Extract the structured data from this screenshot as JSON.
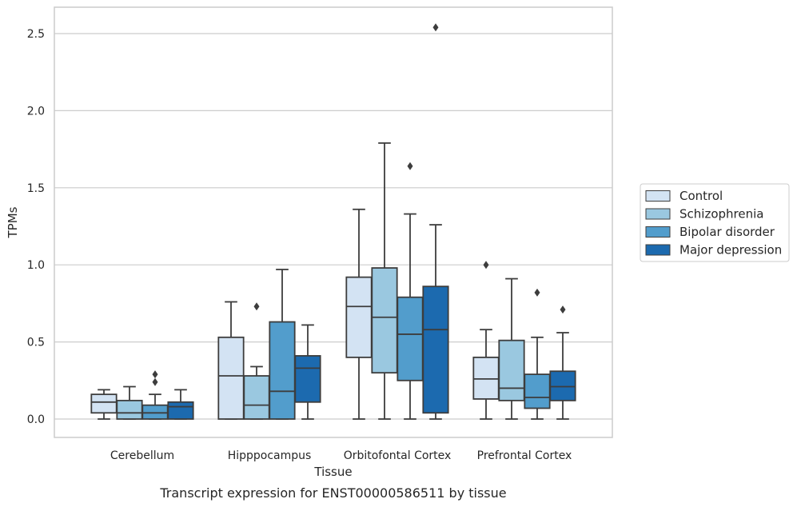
{
  "chart_data": {
    "type": "box",
    "xlabel": "Tissue",
    "ylabel": "TPMs",
    "caption": "Transcript expression for ENST00000586511 by tissue",
    "ylim": [
      -0.12,
      2.67
    ],
    "yticks": [
      "0.0",
      "0.5",
      "1.0",
      "1.5",
      "2.0",
      "2.5"
    ],
    "grid": "horizontal",
    "legend_position": "right",
    "categories": [
      "Cerebellum",
      "Hipppocampus",
      "Orbitofontal Cortex",
      "Prefrontal Cortex"
    ],
    "series": [
      {
        "name": "Control",
        "color": "#d3e3f3",
        "boxes": [
          {
            "whislo": 0.0,
            "q1": 0.04,
            "med": 0.11,
            "q3": 0.16,
            "whishi": 0.19,
            "fliers": []
          },
          {
            "whislo": 0.0,
            "q1": 0.0,
            "med": 0.28,
            "q3": 0.53,
            "whishi": 0.76,
            "fliers": []
          },
          {
            "whislo": 0.0,
            "q1": 0.4,
            "med": 0.73,
            "q3": 0.92,
            "whishi": 1.36,
            "fliers": []
          },
          {
            "whislo": 0.0,
            "q1": 0.13,
            "med": 0.26,
            "q3": 0.4,
            "whishi": 0.58,
            "fliers": [
              1.0
            ]
          }
        ]
      },
      {
        "name": "Schizophrenia",
        "color": "#9ac8e0",
        "boxes": [
          {
            "whislo": 0.0,
            "q1": 0.0,
            "med": 0.04,
            "q3": 0.12,
            "whishi": 0.21,
            "fliers": []
          },
          {
            "whislo": 0.0,
            "q1": 0.0,
            "med": 0.09,
            "q3": 0.28,
            "whishi": 0.34,
            "fliers": [
              0.73
            ]
          },
          {
            "whislo": 0.0,
            "q1": 0.3,
            "med": 0.66,
            "q3": 0.98,
            "whishi": 1.79,
            "fliers": []
          },
          {
            "whislo": 0.0,
            "q1": 0.12,
            "med": 0.2,
            "q3": 0.51,
            "whishi": 0.91,
            "fliers": []
          }
        ]
      },
      {
        "name": "Bipolar disorder",
        "color": "#529dcc",
        "boxes": [
          {
            "whislo": 0.0,
            "q1": 0.0,
            "med": 0.04,
            "q3": 0.09,
            "whishi": 0.16,
            "fliers": [
              0.24,
              0.29
            ]
          },
          {
            "whislo": 0.0,
            "q1": 0.0,
            "med": 0.18,
            "q3": 0.63,
            "whishi": 0.97,
            "fliers": []
          },
          {
            "whislo": 0.0,
            "q1": 0.25,
            "med": 0.55,
            "q3": 0.79,
            "whishi": 1.33,
            "fliers": [
              1.64
            ]
          },
          {
            "whislo": 0.0,
            "q1": 0.07,
            "med": 0.14,
            "q3": 0.29,
            "whishi": 0.53,
            "fliers": [
              0.82
            ]
          }
        ]
      },
      {
        "name": "Major depression",
        "color": "#1c6aaf",
        "boxes": [
          {
            "whislo": 0.0,
            "q1": 0.0,
            "med": 0.08,
            "q3": 0.11,
            "whishi": 0.19,
            "fliers": []
          },
          {
            "whislo": 0.0,
            "q1": 0.11,
            "med": 0.33,
            "q3": 0.41,
            "whishi": 0.61,
            "fliers": []
          },
          {
            "whislo": 0.0,
            "q1": 0.04,
            "med": 0.58,
            "q3": 0.86,
            "whishi": 1.26,
            "fliers": [
              2.54
            ]
          },
          {
            "whislo": 0.0,
            "q1": 0.12,
            "med": 0.21,
            "q3": 0.31,
            "whishi": 0.56,
            "fliers": [
              0.71
            ]
          }
        ]
      }
    ]
  }
}
